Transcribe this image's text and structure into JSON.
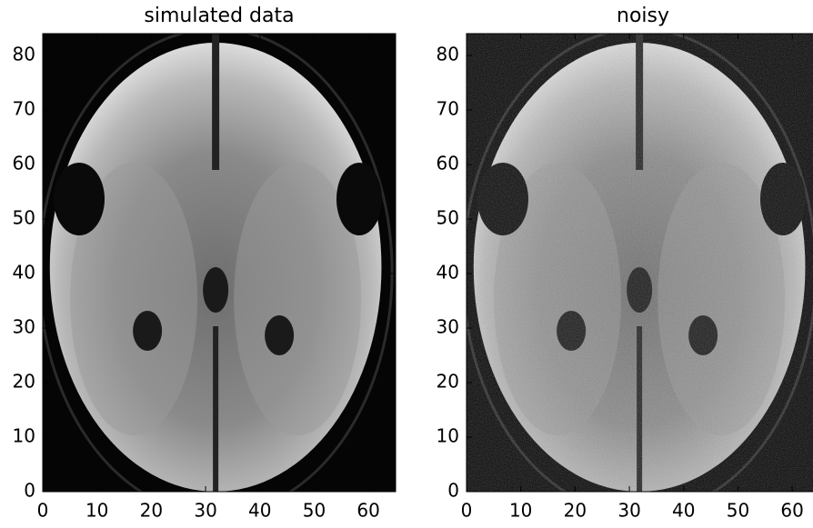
{
  "chart_data": [
    {
      "type": "image",
      "title": "simulated data",
      "xlim": [
        0,
        65
      ],
      "ylim": [
        0,
        84
      ],
      "xticks": [
        0,
        10,
        20,
        30,
        40,
        50,
        60
      ],
      "yticks": [
        0,
        10,
        20,
        30,
        40,
        50,
        60,
        70,
        80
      ]
    },
    {
      "type": "image",
      "title": "noisy",
      "noise": true,
      "xlim": [
        0,
        65
      ],
      "ylim": [
        0,
        84
      ],
      "xticks": [
        0,
        10,
        20,
        30,
        40,
        50,
        60
      ],
      "yticks": [
        0,
        10,
        20,
        30,
        40,
        50,
        60,
        70,
        80
      ]
    }
  ]
}
